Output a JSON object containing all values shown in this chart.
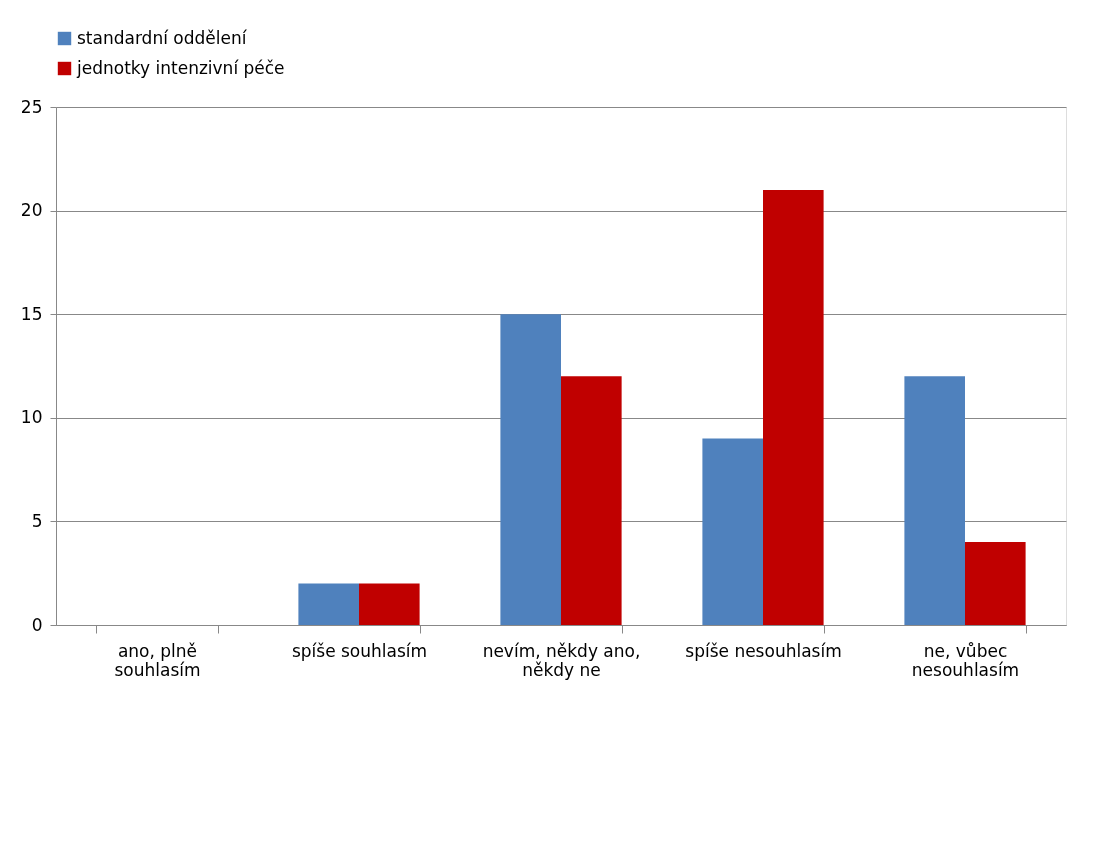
{
  "chart_data": {
    "type": "bar",
    "categories": [
      "ano, plně souhlasím",
      "spíše souhlasím",
      "nevím, někdy ano, někdy ne",
      "spíše nesouhlasím",
      "ne, vůbec nesouhlasím"
    ],
    "series": [
      {
        "name": "standardní oddělení",
        "color": "#4f81bd",
        "values": [
          0,
          2,
          15,
          9,
          12
        ]
      },
      {
        "name": "jednotky intenzivní péče",
        "color": "#c00000",
        "values": [
          0,
          2,
          12,
          21,
          4
        ]
      }
    ],
    "ylim": [
      0,
      25
    ],
    "yticks": [
      0,
      5,
      10,
      15,
      20,
      25
    ],
    "grid": "y",
    "legend": "top"
  }
}
